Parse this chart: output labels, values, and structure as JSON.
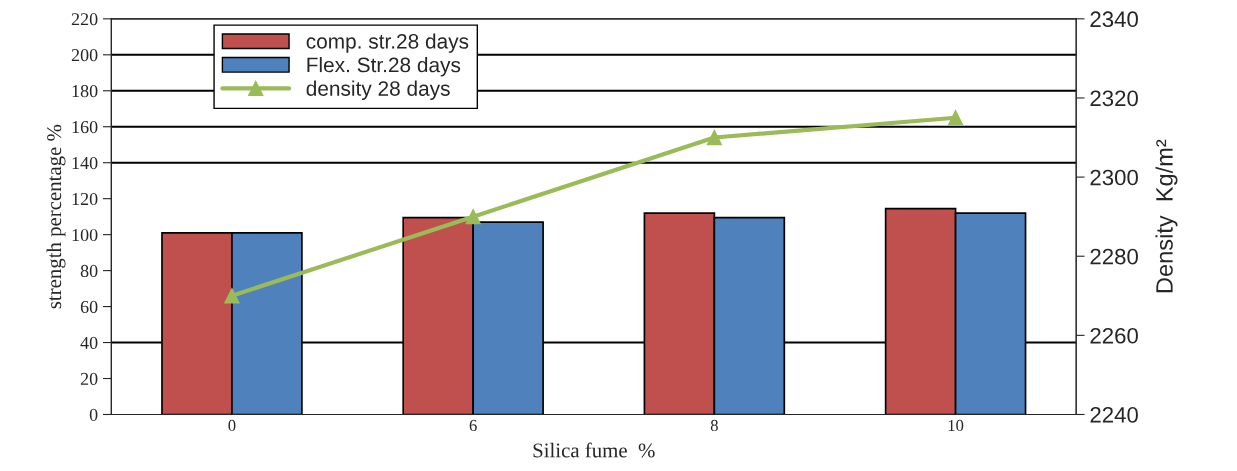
{
  "chart_data": {
    "type": "bar",
    "xlabel": "Silica fume  %",
    "ylabel": "strength percentage %",
    "y2label": "Density  Kg/m²",
    "categories": [
      "0",
      "6",
      "8",
      "10"
    ],
    "series": [
      {
        "name": "comp. str.28 days",
        "color": "#c0504d",
        "values": [
          101,
          109.5,
          112,
          114.5
        ]
      },
      {
        "name": "Flex. Str.28 days",
        "color": "#4f81bd",
        "values": [
          101,
          107,
          109.5,
          112
        ]
      },
      {
        "name": "density 28 days",
        "color": "#9bbb59",
        "type": "line",
        "axis": "y2",
        "marker": "triangle",
        "values": [
          2270,
          2290,
          2310,
          2315
        ]
      }
    ],
    "ylim": [
      0,
      220
    ],
    "yticks": [
      0,
      20,
      40,
      60,
      80,
      100,
      120,
      140,
      160,
      180,
      200,
      220
    ],
    "y2lim": [
      2240,
      2340
    ],
    "y2ticks": [
      2240,
      2260,
      2280,
      2300,
      2320,
      2340
    ],
    "ref_lines": [
      {
        "axis": "y",
        "value": 40,
        "color": "#000000"
      },
      {
        "axis": "y",
        "value": 140,
        "color": "#000000"
      },
      {
        "axis": "y",
        "value": 160,
        "color": "#000000"
      },
      {
        "axis": "y",
        "value": 180,
        "color": "#000000"
      },
      {
        "axis": "y",
        "value": 200,
        "color": "#000000"
      }
    ],
    "legend": "top left"
  }
}
